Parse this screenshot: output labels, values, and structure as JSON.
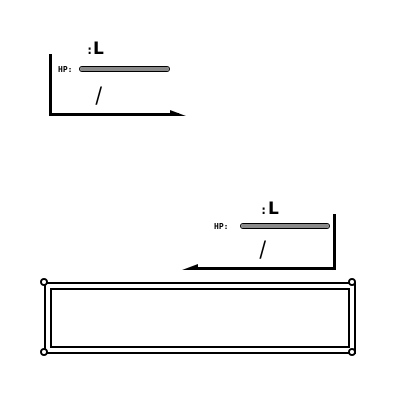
{
  "enemy_status": {
    "level_colon": ":",
    "level_text": "L",
    "hp_label": "HP:",
    "hp_fraction": 1.0,
    "hp_separator": "/"
  },
  "player_status": {
    "level_colon": ":",
    "level_text": "L",
    "hp_label": "HP:",
    "hp_fraction": 1.0,
    "hp_separator": "/"
  },
  "dialog": {
    "text": ""
  },
  "colors": {
    "hp_bar": "#8a8a8a",
    "ink": "#000000",
    "background": "#ffffff"
  }
}
